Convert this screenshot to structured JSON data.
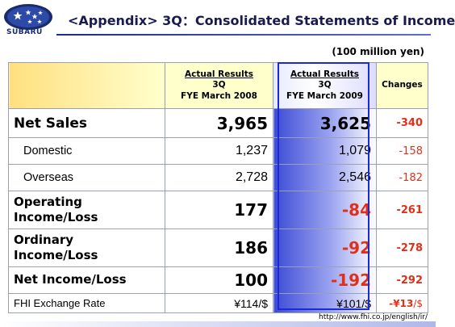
{
  "header": {
    "brand": "SUBARU",
    "title": "<Appendix> 3Q：Consolidated Statements of Income",
    "logo_icon": "subaru-pleiades-logo"
  },
  "unit": "(100 million yen)",
  "columns": {
    "prev": {
      "line1": "Actual Results",
      "line2": "3Q",
      "line3": "FYE March 2008"
    },
    "curr": {
      "line1": "Actual Results",
      "line2": "3Q",
      "line3": "FYE March 2009"
    },
    "change": "Changes"
  },
  "rows": [
    {
      "label": "Net Sales",
      "prev": "3,965",
      "curr": "3,625",
      "change": "-340"
    },
    {
      "label": "Domestic",
      "prev": "1,237",
      "curr": "1,079",
      "change": "-158"
    },
    {
      "label": "Overseas",
      "prev": "2,728",
      "curr": "2,546",
      "change": "-182"
    },
    {
      "label_line1": "Operating",
      "label_line2": "Income/Loss",
      "prev": "177",
      "curr": "-84",
      "change": "-261"
    },
    {
      "label_line1": "Ordinary",
      "label_line2": "Income/Loss",
      "prev": "186",
      "curr": "-92",
      "change": "-278"
    },
    {
      "label": "Net Income/Loss",
      "prev": "100",
      "curr": "-192",
      "change": "-292"
    },
    {
      "label": "FHI Exchange Rate",
      "prev": "¥114/$",
      "curr": "¥101/$",
      "change": "-¥13",
      "change_suffix": "/$"
    }
  ],
  "footer": {
    "url": "http://www.fhi.co.jp/english/ir/"
  },
  "colors": {
    "accent_blue": "#1a2bd6",
    "negative_red": "#e0301a",
    "header_yellow": "#ffffcc"
  }
}
